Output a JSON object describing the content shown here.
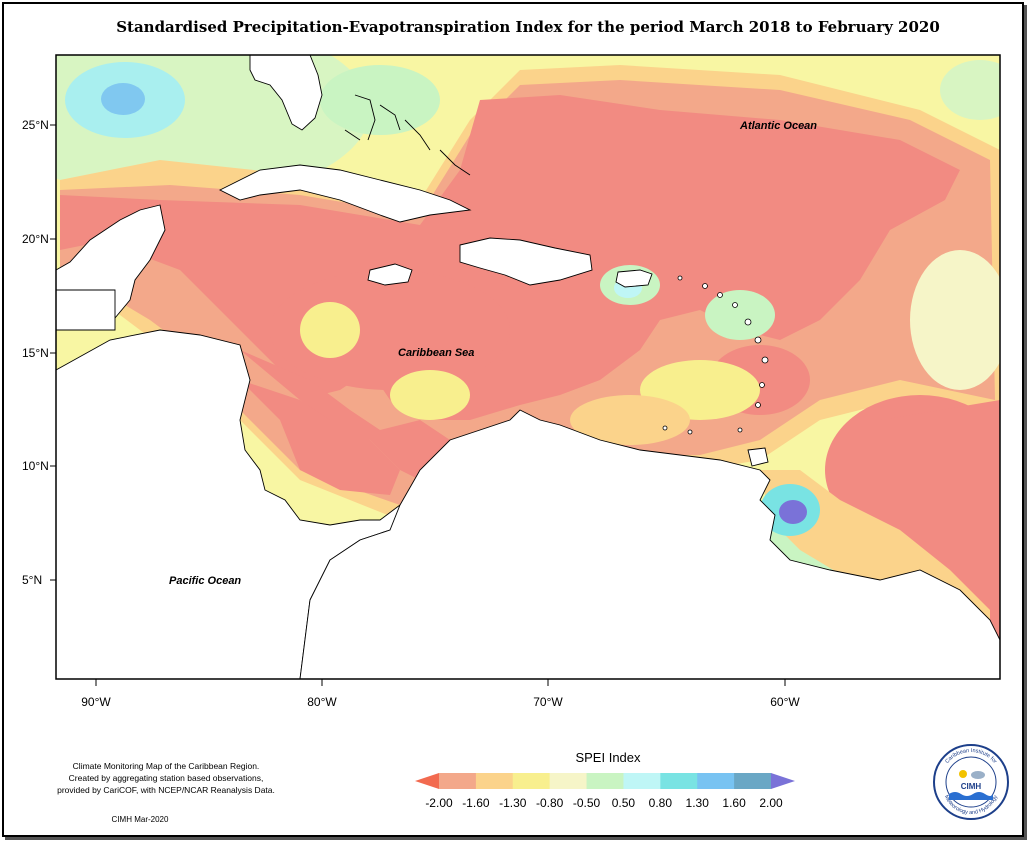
{
  "title": "Standardised Precipitation-Evapotranspiration Index for the period March 2018 to February 2020",
  "axes": {
    "y_ticks": [
      "25°N",
      "20°N",
      "15°N",
      "10°N",
      "5°N"
    ],
    "x_ticks": [
      "90°W",
      "80°W",
      "70°W",
      "60°W"
    ]
  },
  "labels": {
    "atlantic": "Atlantic Ocean",
    "caribbean": "Caribbean Sea",
    "pacific": "Pacific Ocean"
  },
  "legend": {
    "title": "SPEI Index",
    "values": [
      "-2.00",
      "-1.60",
      "-1.30",
      "-0.80",
      "-0.50",
      "0.50",
      "0.80",
      "1.30",
      "1.60",
      "2.00"
    ],
    "colors": [
      "#f26a4f",
      "#f3a88a",
      "#fbd38b",
      "#f8ef8e",
      "#f6f5c8",
      "#c9f4c2",
      "#bff6f6",
      "#79e3e3",
      "#78c3f2",
      "#6aa7c5",
      "#7a72d8"
    ]
  },
  "notes": {
    "line1": "Climate Monitoring Map of the Caribbean Region.",
    "line2": "Created by aggregating station based observations,",
    "line3": "provided by CariCOF, with NCEP/NCAR Reanalysis Data.",
    "stamp": "CIMH Mar-2020"
  },
  "logo": {
    "text": "CIMH",
    "ring_top": "Caribbean Institute for",
    "ring_bottom": "Meteorology and Hydrology"
  }
}
